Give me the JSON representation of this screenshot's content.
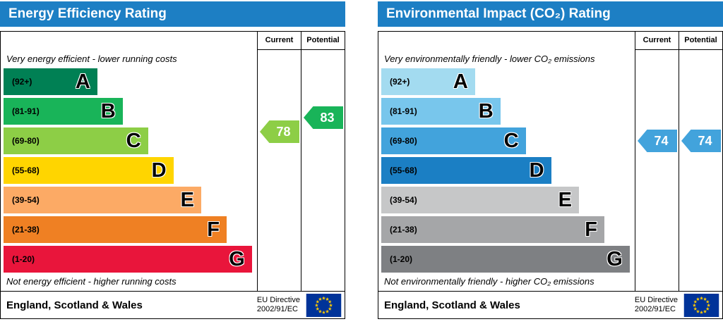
{
  "eu_flag": {
    "field": "#003399",
    "stars": "#ffcc00"
  },
  "charts": [
    {
      "title": "Energy Efficiency Rating",
      "header_color": "#1d7fc4",
      "columns": {
        "current": "Current",
        "potential": "Potential"
      },
      "top_note": "Very energy efficient - lower running costs",
      "bottom_note": "Not energy efficient - higher running costs",
      "bands": [
        {
          "label": "(92+)",
          "letter": "A",
          "min": 92,
          "max": 100,
          "color": "#008054",
          "width_pct": 37
        },
        {
          "label": "(81-91)",
          "letter": "B",
          "min": 81,
          "max": 91,
          "color": "#19b459",
          "width_pct": 47
        },
        {
          "label": "(69-80)",
          "letter": "C",
          "min": 69,
          "max": 80,
          "color": "#8dce46",
          "width_pct": 57
        },
        {
          "label": "(55-68)",
          "letter": "D",
          "min": 55,
          "max": 68,
          "color": "#ffd500",
          "width_pct": 67
        },
        {
          "label": "(39-54)",
          "letter": "E",
          "min": 39,
          "max": 54,
          "color": "#fcaa65",
          "width_pct": 78
        },
        {
          "label": "(21-38)",
          "letter": "F",
          "min": 21,
          "max": 38,
          "color": "#ef8023",
          "width_pct": 88
        },
        {
          "label": "(1-20)",
          "letter": "G",
          "min": 1,
          "max": 20,
          "color": "#e9153b",
          "width_pct": 98
        }
      ],
      "current": {
        "value": 78,
        "color": "#8dce46"
      },
      "potential": {
        "value": 83,
        "color": "#19b459"
      },
      "footer": {
        "region": "England, Scotland & Wales",
        "directive_line1": "EU Directive",
        "directive_line2": "2002/91/EC"
      }
    },
    {
      "title": "Environmental Impact (CO₂) Rating",
      "header_color": "#1d7fc4",
      "columns": {
        "current": "Current",
        "potential": "Potential"
      },
      "top_note": "Very environmentally friendly - lower CO₂ emissions",
      "bottom_note": "Not environmentally friendly - higher CO₂ emissions",
      "bands": [
        {
          "label": "(92+)",
          "letter": "A",
          "min": 92,
          "max": 100,
          "color": "#a3dbf0",
          "width_pct": 37
        },
        {
          "label": "(81-91)",
          "letter": "B",
          "min": 81,
          "max": 91,
          "color": "#78c6ec",
          "width_pct": 47
        },
        {
          "label": "(69-80)",
          "letter": "C",
          "min": 69,
          "max": 80,
          "color": "#42a3dc",
          "width_pct": 57
        },
        {
          "label": "(55-68)",
          "letter": "D",
          "min": 55,
          "max": 68,
          "color": "#1b7fc4",
          "width_pct": 67
        },
        {
          "label": "(39-54)",
          "letter": "E",
          "min": 39,
          "max": 54,
          "color": "#c6c7c8",
          "width_pct": 78
        },
        {
          "label": "(21-38)",
          "letter": "F",
          "min": 21,
          "max": 38,
          "color": "#a5a6a8",
          "width_pct": 88
        },
        {
          "label": "(1-20)",
          "letter": "G",
          "min": 1,
          "max": 20,
          "color": "#7e8083",
          "width_pct": 98
        }
      ],
      "current": {
        "value": 74,
        "color": "#42a3dc"
      },
      "potential": {
        "value": 74,
        "color": "#42a3dc"
      },
      "footer": {
        "region": "England, Scotland & Wales",
        "directive_line1": "EU Directive",
        "directive_line2": "2002/91/EC"
      }
    }
  ],
  "chart_data": [
    {
      "type": "bar",
      "orientation": "horizontal",
      "title": "Energy Efficiency Rating",
      "categories": [
        "A (92+)",
        "B (81-91)",
        "C (69-80)",
        "D (55-68)",
        "E (39-54)",
        "F (21-38)",
        "G (1-20)"
      ],
      "values": [
        37,
        47,
        57,
        67,
        78,
        88,
        98
      ],
      "values_note": "decorative band lengths as % of band area width; bands encode score ranges",
      "markers": {
        "current": 78,
        "potential": 83
      },
      "annotations": [
        "Very energy efficient - lower running costs",
        "Not energy efficient - higher running costs",
        "England, Scotland & Wales",
        "EU Directive 2002/91/EC"
      ],
      "score_range": [
        1,
        100
      ]
    },
    {
      "type": "bar",
      "orientation": "horizontal",
      "title": "Environmental Impact (CO₂) Rating",
      "categories": [
        "A (92+)",
        "B (81-91)",
        "C (69-80)",
        "D (55-68)",
        "E (39-54)",
        "F (21-38)",
        "G (1-20)"
      ],
      "values": [
        37,
        47,
        57,
        67,
        78,
        88,
        98
      ],
      "values_note": "decorative band lengths as % of band area width; bands encode score ranges",
      "markers": {
        "current": 74,
        "potential": 74
      },
      "annotations": [
        "Very environmentally friendly - lower CO₂ emissions",
        "Not environmentally friendly - higher CO₂ emissions",
        "England, Scotland & Wales",
        "EU Directive 2002/91/EC"
      ],
      "score_range": [
        1,
        100
      ]
    }
  ]
}
